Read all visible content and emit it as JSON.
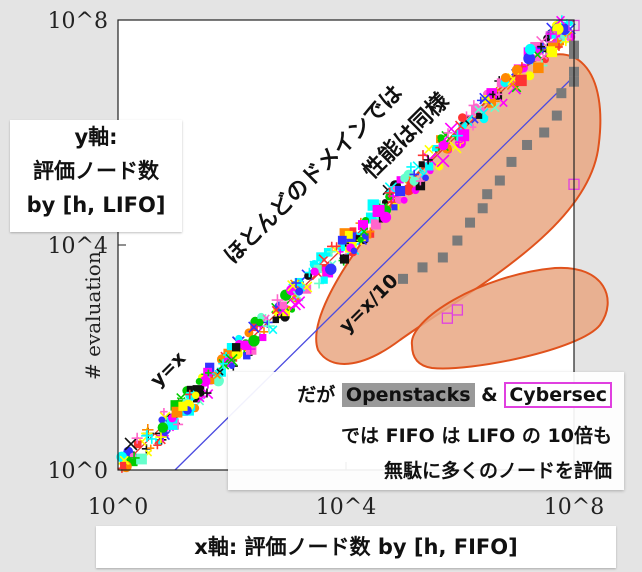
{
  "chart_data": {
    "type": "scatter",
    "xscale": "log",
    "yscale": "log",
    "xlim": [
      1,
      100000000
    ],
    "ylim": [
      1,
      100000000
    ],
    "x_ticks": [
      "10^0",
      "10^4",
      "10^8"
    ],
    "y_ticks": [
      "10^0",
      "10^4",
      "10^8"
    ],
    "ylabel_partial": "# evaluation",
    "grid": false,
    "reference_lines": [
      {
        "label": "y=x",
        "slope_factor": 1,
        "color": "#e03c2c"
      },
      {
        "label": "y=x/10",
        "slope_factor": 0.1,
        "color": "#4b4be0"
      }
    ],
    "series": [
      {
        "marker": "square",
        "color": "#7a7a7a",
        "points": [
          [
            100000,
            2500
          ],
          [
            220000,
            4000
          ],
          [
            500000,
            6000
          ],
          [
            900000,
            12000
          ],
          [
            1500000,
            25000
          ],
          [
            2500000,
            45000
          ],
          [
            3000000,
            80000
          ],
          [
            5000000,
            140000
          ],
          [
            8000000,
            300000
          ],
          [
            15000000,
            600000
          ],
          [
            30000000,
            1000000
          ],
          [
            50000000,
            2000000
          ],
          [
            60000000,
            5000000
          ],
          [
            100000000,
            8000000
          ],
          [
            100000000,
            12000000
          ],
          [
            100000000,
            25000000
          ],
          [
            100000000,
            35000000
          ]
        ]
      },
      {
        "marker": "open-square",
        "color": "#e040e0",
        "points": [
          [
            600000,
            500
          ],
          [
            900000,
            700
          ],
          [
            100000000,
            120000
          ],
          [
            40000000,
            50000000
          ],
          [
            100000000,
            80000000
          ]
        ]
      }
    ],
    "annotations": {
      "diag_top": "ほとんどのドメインでは",
      "diag_bottom": "性能は同様",
      "yx": "y=x",
      "yx10": "y=x/10"
    }
  },
  "ylabel_box": {
    "line1": "y軸:",
    "line2": "評価ノード数",
    "line3": "by [h, LIFO]"
  },
  "note": {
    "pre": "だが",
    "openstacks": "Openstacks",
    "amp": "&",
    "cybersec": "Cybersec",
    "line2": "では FIFO は LIFO の 10倍も",
    "line3": "無駄に多くのノードを評価"
  },
  "xlabel_box": {
    "text": "x軸: 評価ノード数 by [h, FIFO]"
  },
  "colors": {
    "axes_bg": "#ffffff",
    "page_bg": "#e4e4e4",
    "ellipse_fill": "#e9a783",
    "ellipse_stroke": "#e0521c"
  }
}
